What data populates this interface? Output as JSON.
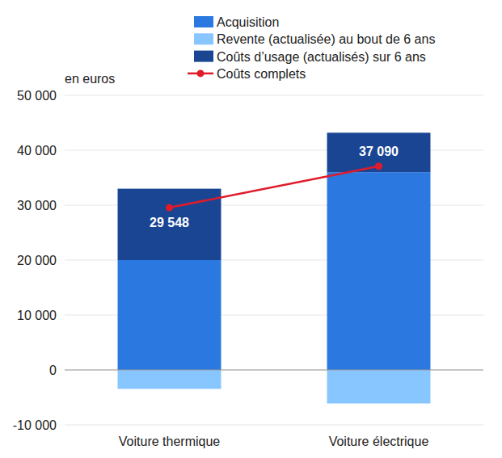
{
  "chart_data": {
    "type": "bar",
    "stacked": true,
    "y_label": "en euros",
    "categories": [
      "Voiture thermique",
      "Voiture électrique"
    ],
    "series": [
      {
        "name": "Acquisition",
        "color": "#2a78e0",
        "values": [
          20000,
          36000
        ]
      },
      {
        "name": "Revente (actualisée) au bout de 6 ans",
        "color": "#88c6ff",
        "values": [
          -3450,
          -6100
        ]
      },
      {
        "name": "Coûts d’usage (actualisés) sur 6 ans",
        "color": "#1a4593",
        "values": [
          13000,
          7190
        ]
      },
      {
        "name": "Coûts complets",
        "type": "line",
        "color": "#e01b2a",
        "marker": "circle",
        "data_labels": true,
        "values": [
          29548,
          37090
        ],
        "value_labels": [
          "29 548",
          "37 090"
        ]
      }
    ],
    "ylim": [
      -10000,
      50000
    ],
    "yticks": [
      {
        "value": -10000,
        "label": "-10 000"
      },
      0,
      {
        "value": 10000,
        "label": "10 000"
      },
      {
        "value": 20000,
        "label": "20 000"
      },
      {
        "value": 30000,
        "label": "30 000"
      },
      {
        "value": 40000,
        "label": "40 000"
      },
      {
        "value": 50000,
        "label": "50 000"
      }
    ],
    "grid": true,
    "legend": "top"
  }
}
